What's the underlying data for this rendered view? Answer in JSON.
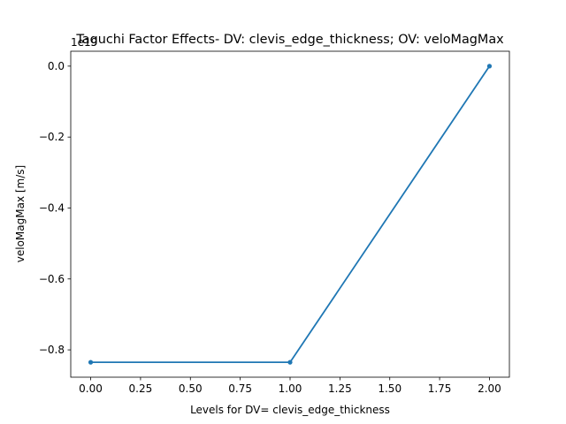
{
  "chart_data": {
    "type": "line",
    "title": "Taguchi Factor Effects- DV: clevis_edge_thickness; OV: veloMagMax",
    "xlabel": "Levels for DV= clevis_edge_thickness",
    "ylabel": "veloMagMax [m/s]",
    "offset_text": "1e19",
    "x": [
      0,
      1,
      2
    ],
    "series": [
      {
        "values": [
          -0.835,
          -0.835,
          0.0
        ]
      }
    ],
    "xlim": [
      -0.1,
      2.1
    ],
    "ylim": [
      -0.877,
      0.042
    ],
    "xticks": [
      0.0,
      0.25,
      0.5,
      0.75,
      1.0,
      1.25,
      1.5,
      1.75,
      2.0
    ],
    "xtick_labels": [
      "0.00",
      "0.25",
      "0.50",
      "0.75",
      "1.00",
      "1.25",
      "1.50",
      "1.75",
      "2.00"
    ],
    "yticks": [
      -0.8,
      -0.6,
      -0.4,
      -0.2,
      0.0
    ],
    "ytick_labels": [
      "−0.8",
      "−0.6",
      "−0.4",
      "−0.2",
      "0.0"
    ],
    "grid": false,
    "line_color": "#1f77b4",
    "marker": "point"
  }
}
